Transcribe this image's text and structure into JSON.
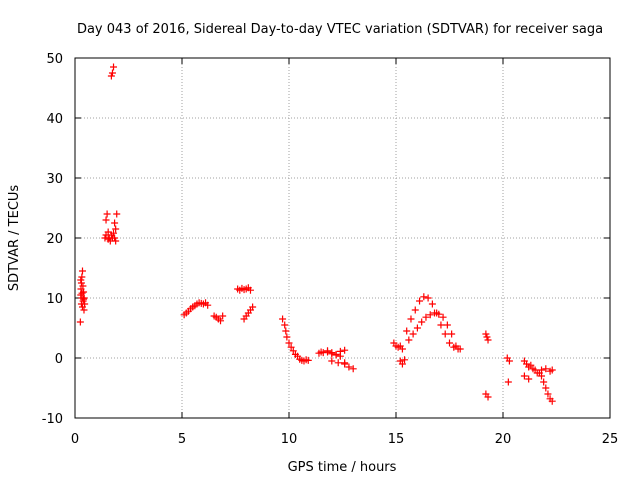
{
  "chart_data": {
    "type": "scatter",
    "title": "Day 043 of 2016, Sidereal Day-to-day VTEC variation (SDTVAR) for receiver saga",
    "xlabel": "GPS time / hours",
    "ylabel": "SDTVAR / TECUs",
    "xlim": [
      0,
      25
    ],
    "ylim": [
      -10,
      50
    ],
    "xticks": [
      0,
      5,
      10,
      15,
      20,
      25
    ],
    "yticks": [
      -10,
      0,
      10,
      20,
      30,
      40,
      50
    ],
    "xtick_labels": [
      "0",
      "5",
      "10",
      "15",
      "20",
      "25"
    ],
    "ytick_labels": [
      "-10",
      "0",
      "10",
      "20",
      "30",
      "40",
      "50"
    ],
    "grid": true,
    "marker": "+",
    "color": "#ff0000",
    "series": [
      {
        "name": "SDTVAR",
        "x": [
          0.25,
          0.27,
          0.28,
          0.3,
          0.3,
          0.32,
          0.33,
          0.35,
          0.35,
          0.37,
          0.38,
          0.4,
          0.42,
          0.43,
          0.45,
          0.27,
          0.33,
          0.4,
          1.4,
          1.45,
          1.5,
          1.55,
          1.6,
          1.65,
          1.7,
          1.75,
          1.8,
          1.85,
          1.9,
          1.95,
          1.45,
          1.55,
          1.85,
          1.9,
          1.7,
          1.75,
          1.8,
          5.1,
          5.2,
          5.3,
          5.4,
          5.5,
          5.6,
          5.7,
          5.8,
          5.9,
          6.0,
          6.1,
          6.2,
          6.5,
          6.6,
          6.7,
          6.8,
          6.9,
          7.6,
          7.7,
          7.8,
          7.9,
          8.0,
          8.1,
          8.2,
          7.9,
          8.0,
          8.1,
          8.2,
          8.3,
          9.7,
          9.8,
          9.85,
          9.9,
          10.0,
          10.1,
          10.2,
          10.3,
          10.4,
          10.5,
          10.6,
          10.7,
          10.8,
          10.9,
          11.4,
          11.6,
          11.8,
          12.0,
          12.2,
          12.4,
          12.6,
          12.8,
          13.0,
          11.5,
          11.8,
          12.0,
          12.2,
          12.4,
          12.6,
          12.0,
          12.3,
          12.6,
          14.9,
          15.0,
          15.1,
          15.2,
          15.3,
          15.2,
          15.3,
          15.4,
          15.5,
          15.7,
          15.9,
          16.1,
          16.3,
          16.5,
          16.7,
          16.9,
          17.1,
          17.3,
          17.5,
          17.7,
          17.9,
          15.6,
          15.8,
          16.0,
          16.2,
          16.4,
          16.6,
          16.8,
          17.0,
          17.2,
          17.4,
          17.6,
          17.8,
          18.0,
          19.2,
          19.25,
          19.3,
          19.2,
          19.3,
          20.2,
          20.3,
          20.25,
          21.0,
          21.1,
          21.2,
          21.3,
          21.4,
          21.5,
          21.6,
          21.0,
          21.2,
          21.7,
          21.8,
          21.9,
          22.0,
          22.1,
          22.2,
          22.3,
          21.8,
          22.0,
          22.2,
          22.3
        ],
        "y": [
          6.0,
          10.5,
          11.5,
          9.0,
          12.5,
          13.5,
          10.0,
          14.5,
          8.5,
          12.0,
          9.5,
          11.0,
          8.0,
          10.0,
          9.0,
          13.0,
          10.8,
          9.8,
          20.0,
          23.0,
          24.0,
          21.0,
          20.0,
          19.5,
          20.5,
          47.5,
          48.5,
          20.0,
          21.5,
          24.0,
          20.5,
          19.8,
          22.5,
          19.5,
          47.0,
          20.0,
          20.8,
          7.2,
          7.5,
          7.8,
          8.2,
          8.5,
          8.7,
          9.0,
          9.2,
          9.1,
          9.0,
          9.2,
          8.8,
          7.0,
          6.8,
          6.5,
          6.2,
          7.0,
          11.5,
          11.3,
          11.6,
          11.4,
          11.5,
          11.7,
          11.3,
          6.5,
          7.0,
          7.5,
          8.0,
          8.5,
          6.5,
          5.5,
          4.5,
          3.5,
          2.5,
          1.8,
          1.2,
          0.6,
          0.3,
          -0.2,
          -0.4,
          -0.5,
          -0.3,
          -0.4,
          0.8,
          0.9,
          1.0,
          0.7,
          0.5,
          0.3,
          -0.8,
          -1.5,
          -1.8,
          1.0,
          1.2,
          0.9,
          0.6,
          1.1,
          1.3,
          -0.5,
          -0.8,
          -1.0,
          2.5,
          2.0,
          1.8,
          2.0,
          1.5,
          -0.5,
          -1.0,
          -0.3,
          4.5,
          6.5,
          8.0,
          9.5,
          10.2,
          10.0,
          9.0,
          7.5,
          5.5,
          4.0,
          2.5,
          1.8,
          1.5,
          3.0,
          4.0,
          5.0,
          6.0,
          6.8,
          7.2,
          7.5,
          7.3,
          6.8,
          5.5,
          4.0,
          2.0,
          1.5,
          4.0,
          3.5,
          3.0,
          -6.0,
          -6.5,
          0.0,
          -0.5,
          -4.0,
          -0.5,
          -1.0,
          -1.5,
          -1.2,
          -1.8,
          -2.0,
          -2.5,
          -3.0,
          -3.5,
          -2.5,
          -3.0,
          -4.0,
          -5.0,
          -6.0,
          -6.8,
          -7.2,
          -2.0,
          -1.8,
          -2.2,
          -2.0
        ]
      }
    ]
  }
}
